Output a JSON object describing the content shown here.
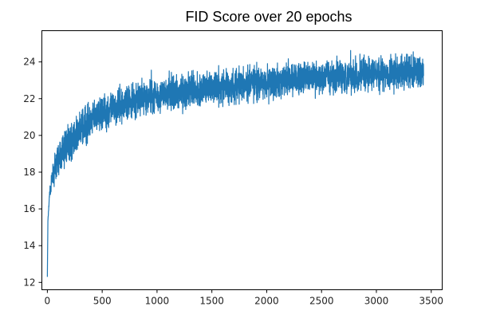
{
  "chart_data": {
    "type": "line",
    "title": "FID Score over 20 epochs",
    "xlabel": "",
    "ylabel": "",
    "xlim": [
      -50,
      3600
    ],
    "ylim": [
      11.6,
      25.7
    ],
    "xticks": [
      0,
      500,
      1000,
      1500,
      2000,
      2500,
      3000,
      3500
    ],
    "yticks": [
      12,
      14,
      16,
      18,
      20,
      22,
      24
    ],
    "grid": false,
    "legend": "none",
    "series": [
      {
        "color": "#1f77b4",
        "trend_points": [
          {
            "x": 0,
            "y": 12.3
          },
          {
            "x": 5,
            "y": 15.3
          },
          {
            "x": 20,
            "y": 16.8
          },
          {
            "x": 50,
            "y": 17.8
          },
          {
            "x": 100,
            "y": 18.7
          },
          {
            "x": 200,
            "y": 19.6
          },
          {
            "x": 300,
            "y": 20.3
          },
          {
            "x": 500,
            "y": 21.2
          },
          {
            "x": 750,
            "y": 21.8
          },
          {
            "x": 1000,
            "y": 22.2
          },
          {
            "x": 1500,
            "y": 22.6
          },
          {
            "x": 2000,
            "y": 22.9
          },
          {
            "x": 2500,
            "y": 23.2
          },
          {
            "x": 3000,
            "y": 23.4
          },
          {
            "x": 3430,
            "y": 23.5
          }
        ],
        "noise_amplitude": 0.55,
        "num_points": 3430
      }
    ]
  }
}
